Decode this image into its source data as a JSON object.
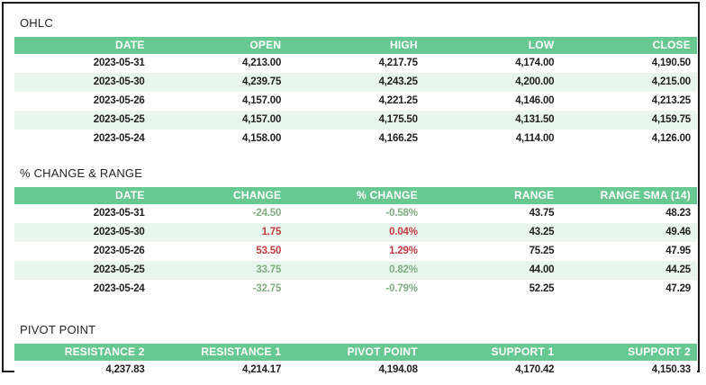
{
  "theme": {
    "header_bg": "#67c892",
    "stripe_bg": "#e8f6ee",
    "header_text": "#ffffff",
    "text": "#212121",
    "title_text": "#252525",
    "positive": "#7fad80",
    "negative": "#c23b42",
    "border_color": "#1b1b1b"
  },
  "chart_data": [
    {
      "type": "table",
      "title": "OHLC",
      "columns": [
        "DATE",
        "OPEN",
        "HIGH",
        "LOW",
        "CLOSE"
      ],
      "rows": [
        [
          "2023-05-31",
          "4,213.00",
          "4,217.75",
          "4,174.00",
          "4,190.50"
        ],
        [
          "2023-05-30",
          "4,239.75",
          "4,243.25",
          "4,200.00",
          "4,215.00"
        ],
        [
          "2023-05-26",
          "4,157.00",
          "4,221.25",
          "4,146.00",
          "4,213.25"
        ],
        [
          "2023-05-25",
          "4,157.00",
          "4,175.50",
          "4,131.50",
          "4,159.75"
        ],
        [
          "2023-05-24",
          "4,158.00",
          "4,166.25",
          "4,114.00",
          "4,126.00"
        ]
      ]
    },
    {
      "type": "table",
      "title": "% CHANGE & RANGE",
      "columns": [
        "DATE",
        "CHANGE",
        "% CHANGE",
        "RANGE",
        "RANGE SMA (14)"
      ],
      "rows": [
        [
          "2023-05-31",
          "-24.50",
          "-0.58%",
          "43.75",
          "48.23"
        ],
        [
          "2023-05-30",
          "1.75",
          "0.04%",
          "43.25",
          "49.46"
        ],
        [
          "2023-05-26",
          "53.50",
          "1.29%",
          "75.25",
          "47.95"
        ],
        [
          "2023-05-25",
          "33.75",
          "0.82%",
          "44.00",
          "44.25"
        ],
        [
          "2023-05-24",
          "-32.75",
          "-0.79%",
          "52.25",
          "47.29"
        ]
      ],
      "colored_columns": [
        1,
        2
      ],
      "row_value_colors": [
        "green",
        "red",
        "red",
        "green",
        "green"
      ]
    },
    {
      "type": "table",
      "title": "PIVOT POINT",
      "columns": [
        "RESISTANCE 2",
        "RESISTANCE 1",
        "PIVOT POINT",
        "SUPPORT 1",
        "SUPPORT 2"
      ],
      "rows": [
        [
          "4,237.83",
          "4,214.17",
          "4,194.08",
          "4,170.42",
          "4,150.33"
        ]
      ]
    }
  ]
}
